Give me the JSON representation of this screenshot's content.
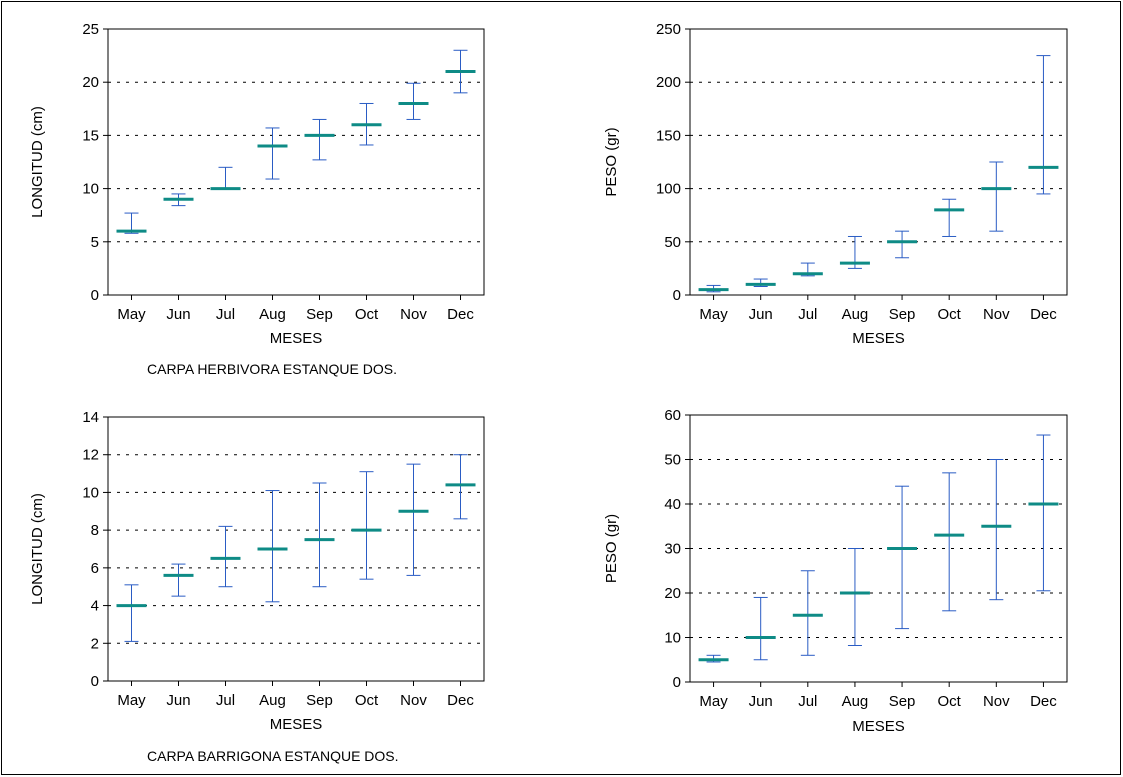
{
  "figure": {
    "caption_top": "CARPA HERBIVORA ESTANQUE DOS.",
    "caption_bottom": "CARPA BARRIGONA ESTANQUE DOS."
  },
  "style": {
    "median_color": "#0e8b86",
    "whisker_color": "#2a5cc4",
    "grid_color": "#000000",
    "frame_color": "#000000"
  },
  "chart_data": [
    {
      "type": "bar",
      "subtype": "range-median",
      "xlabel": "MESES",
      "ylabel": "LONGITUD (cm)",
      "categories": [
        "May",
        "Jun",
        "Jul",
        "Aug",
        "Sep",
        "Oct",
        "Nov",
        "Dec"
      ],
      "ylim": [
        0,
        25
      ],
      "yticks": [
        0,
        5,
        10,
        15,
        20,
        25
      ],
      "grid": true,
      "series": [
        {
          "median": [
            6,
            9,
            10,
            14,
            15,
            16,
            18,
            21
          ],
          "low": [
            5.8,
            8.4,
            10,
            10.9,
            12.7,
            14.1,
            16.5,
            19
          ],
          "high": [
            7.7,
            9.5,
            12,
            15.7,
            16.5,
            18,
            19.9,
            23
          ]
        }
      ]
    },
    {
      "type": "bar",
      "subtype": "range-median",
      "xlabel": "MESES",
      "ylabel": "PESO (gr)",
      "categories": [
        "May",
        "Jun",
        "Jul",
        "Aug",
        "Sep",
        "Oct",
        "Nov",
        "Dec"
      ],
      "ylim": [
        0,
        250
      ],
      "yticks": [
        0,
        50,
        100,
        150,
        200,
        250
      ],
      "grid": true,
      "series": [
        {
          "median": [
            5,
            10,
            20,
            30,
            50,
            80,
            100,
            120
          ],
          "low": [
            3,
            8,
            18,
            25,
            35,
            55,
            60,
            95
          ],
          "high": [
            9,
            15,
            30,
            55,
            60,
            90,
            125,
            225
          ]
        }
      ]
    },
    {
      "type": "bar",
      "subtype": "range-median",
      "xlabel": "MESES",
      "ylabel": "LONGITUD (cm)",
      "categories": [
        "May",
        "Jun",
        "Jul",
        "Aug",
        "Sep",
        "Oct",
        "Nov",
        "Dec"
      ],
      "ylim": [
        0,
        14
      ],
      "yticks": [
        0,
        2,
        4,
        6,
        8,
        10,
        12,
        14
      ],
      "grid": true,
      "series": [
        {
          "median": [
            4,
            5.6,
            6.5,
            7,
            7.5,
            8,
            9,
            10.4
          ],
          "low": [
            2.1,
            4.5,
            5,
            4.2,
            5,
            5.4,
            5.6,
            8.6
          ],
          "high": [
            5.1,
            6.2,
            8.2,
            10.1,
            10.5,
            11.1,
            11.5,
            12
          ]
        }
      ]
    },
    {
      "type": "bar",
      "subtype": "range-median",
      "xlabel": "MESES",
      "ylabel": "PESO (gr)",
      "categories": [
        "May",
        "Jun",
        "Jul",
        "Aug",
        "Sep",
        "Oct",
        "Nov",
        "Dec"
      ],
      "ylim": [
        0,
        60
      ],
      "yticks": [
        0,
        10,
        20,
        30,
        40,
        50,
        60
      ],
      "grid": true,
      "series": [
        {
          "median": [
            5,
            10,
            15,
            20,
            30,
            33,
            35,
            40
          ],
          "low": [
            4.5,
            5,
            6,
            8.2,
            12,
            16,
            18.5,
            20.5
          ],
          "high": [
            6,
            19,
            25,
            30,
            44,
            47,
            50,
            55.5
          ]
        }
      ]
    }
  ]
}
